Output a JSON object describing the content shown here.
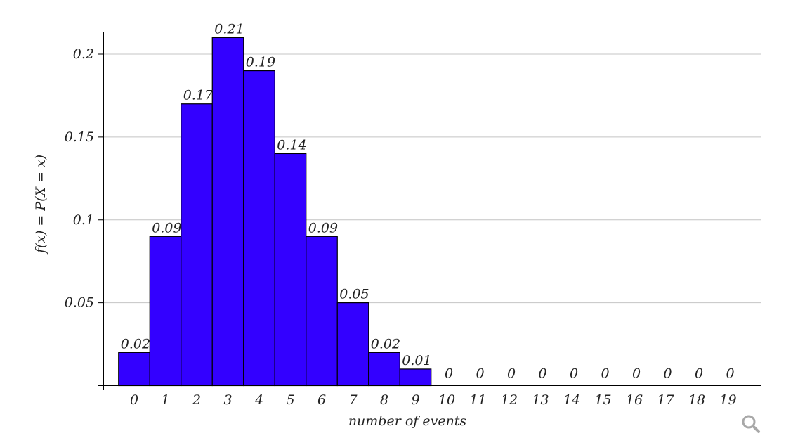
{
  "chart_data": {
    "type": "bar",
    "categories": [
      "0",
      "1",
      "2",
      "3",
      "4",
      "5",
      "6",
      "7",
      "8",
      "9",
      "10",
      "11",
      "12",
      "13",
      "14",
      "15",
      "16",
      "17",
      "18",
      "19"
    ],
    "values": [
      0.02,
      0.09,
      0.17,
      0.21,
      0.19,
      0.14,
      0.09,
      0.05,
      0.02,
      0.01,
      0,
      0,
      0,
      0,
      0,
      0,
      0,
      0,
      0,
      0
    ],
    "data_labels": [
      "0.02",
      "0.09",
      "0.17",
      "0.21",
      "0.19",
      "0.14",
      "0.09",
      "0.05",
      "0.02",
      "0.01",
      "0",
      "0",
      "0",
      "0",
      "0",
      "0",
      "0",
      "0",
      "0",
      "0"
    ],
    "xlabel": "number of events",
    "ylabel": "f(x) = P(X = x)",
    "yticks": [
      0.05,
      0.1,
      0.15,
      0.2
    ],
    "ytick_labels": [
      "0.05",
      "0.1",
      "0.15",
      "0.2"
    ],
    "ylim": [
      0,
      0.22
    ],
    "grid": true,
    "bar_color": "#3300ff"
  },
  "controls": {
    "zoom_icon": "magnifier-icon"
  }
}
